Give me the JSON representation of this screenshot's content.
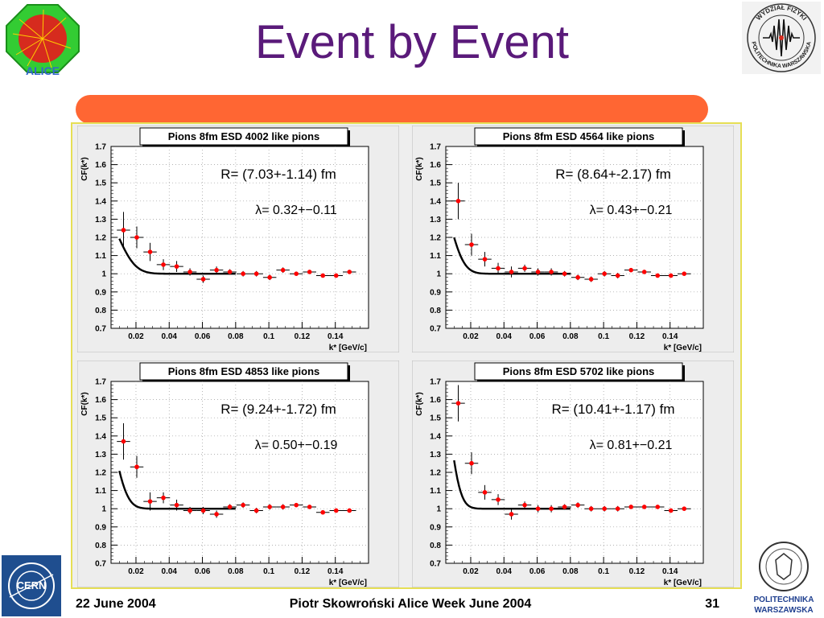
{
  "slide": {
    "title": "Event by Event",
    "footer": {
      "date": "22 June 2004",
      "author": "Piotr Skowroński  Alice Week June  2004",
      "page": "31"
    },
    "logos": {
      "top_left": "alice-logo",
      "top_right": "wydzial-fizyki-logo",
      "bottom_left": "cern-logo",
      "bottom_right": "politechnika-warszawska-logo",
      "top_left_text": "ALICE",
      "top_right_text_top": "WYDZIAŁ FIZYKI",
      "top_right_text_bottom": "POLITECHNIKA WARSZAWSKA",
      "bottom_left_text": "CERN",
      "bottom_right_text_1": "POLITECHNIKA",
      "bottom_right_text_2": "WARSZAWSKA"
    },
    "colors": {
      "title": "#5a1a7a",
      "bar": "#ff6633",
      "frame_border": "#e6df55",
      "points": "#ff0000",
      "fit": "#000000"
    }
  },
  "chart_data": [
    {
      "type": "scatter",
      "title": "Pions 8fm ESD  4002 like pions",
      "xlabel": "k* [GeV/c]",
      "ylabel": "CF(k*)",
      "xlim": [
        0.005,
        0.16
      ],
      "ylim": [
        0.7,
        1.7
      ],
      "x_ticks": [
        "0.02",
        "0.04",
        "0.06",
        "0.08",
        "0.1",
        "0.12",
        "0.14"
      ],
      "y_ticks": [
        "0.7",
        "0.8",
        "0.9",
        "1",
        "1.1",
        "1.2",
        "1.3",
        "1.4",
        "1.5",
        "1.6",
        "1.7"
      ],
      "grid": true,
      "annotation_R": "R= (7.03+-1.14) fm",
      "annotation_lambda": "λ= 0.32+−0.11",
      "fit": {
        "R": 7.03,
        "lambda": 0.32,
        "x_end": 0.08
      },
      "x": [
        0.0125,
        0.0205,
        0.0285,
        0.0365,
        0.0445,
        0.0525,
        0.0605,
        0.0685,
        0.0765,
        0.0845,
        0.0925,
        0.1005,
        0.1085,
        0.1165,
        0.1245,
        0.1325,
        0.1405,
        0.1485
      ],
      "y": [
        1.24,
        1.2,
        1.12,
        1.05,
        1.04,
        1.01,
        0.97,
        1.02,
        1.01,
        1.0,
        1.0,
        0.98,
        1.02,
        1.0,
        1.01,
        0.99,
        0.99,
        1.01
      ],
      "yerr": [
        0.1,
        0.06,
        0.05,
        0.03,
        0.03,
        0.02,
        0.02,
        0.02,
        0.015,
        0.015,
        0.015,
        0.015,
        0.015,
        0.01,
        0.01,
        0.01,
        0.01,
        0.01
      ]
    },
    {
      "type": "scatter",
      "title": "Pions 8fm ESD 4564 like pions",
      "xlabel": "k* [GeV/c]",
      "ylabel": "CF(k*)",
      "xlim": [
        0.005,
        0.16
      ],
      "ylim": [
        0.7,
        1.7
      ],
      "x_ticks": [
        "0.02",
        "0.04",
        "0.06",
        "0.08",
        "0.1",
        "0.12",
        "0.14"
      ],
      "y_ticks": [
        "0.7",
        "0.8",
        "0.9",
        "1",
        "1.1",
        "1.2",
        "1.3",
        "1.4",
        "1.5",
        "1.6",
        "1.7"
      ],
      "grid": true,
      "annotation_R": "R= (8.64+-2.17) fm",
      "annotation_lambda": "λ= 0.43+−0.21",
      "fit": {
        "R": 8.64,
        "lambda": 0.43,
        "x_end": 0.08
      },
      "x": [
        0.0125,
        0.0205,
        0.0285,
        0.0365,
        0.0445,
        0.0525,
        0.0605,
        0.0685,
        0.0765,
        0.0845,
        0.0925,
        0.1005,
        0.1085,
        0.1165,
        0.1245,
        0.1325,
        0.1405,
        0.1485
      ],
      "y": [
        1.4,
        1.16,
        1.08,
        1.03,
        1.01,
        1.03,
        1.01,
        1.01,
        1.0,
        0.98,
        0.97,
        1.0,
        0.99,
        1.02,
        1.01,
        0.99,
        0.99,
        1.0
      ],
      "yerr": [
        0.1,
        0.06,
        0.04,
        0.03,
        0.03,
        0.02,
        0.02,
        0.02,
        0.015,
        0.015,
        0.015,
        0.015,
        0.015,
        0.01,
        0.01,
        0.01,
        0.01,
        0.01
      ]
    },
    {
      "type": "scatter",
      "title": "Pions 8fm ESD 4853 like pions",
      "xlabel": "k* [GeV/c]",
      "ylabel": "CF(k*)",
      "xlim": [
        0.005,
        0.16
      ],
      "ylim": [
        0.7,
        1.7
      ],
      "x_ticks": [
        "0.02",
        "0.04",
        "0.06",
        "0.08",
        "0.1",
        "0.12",
        "0.14"
      ],
      "y_ticks": [
        "0.7",
        "0.8",
        "0.9",
        "1",
        "1.1",
        "1.2",
        "1.3",
        "1.4",
        "1.5",
        "1.6",
        "1.7"
      ],
      "grid": true,
      "annotation_R": "R= (9.24+-1.72) fm",
      "annotation_lambda": "λ= 0.50+−0.19",
      "fit": {
        "R": 9.24,
        "lambda": 0.5,
        "x_end": 0.08
      },
      "x": [
        0.0125,
        0.0205,
        0.0285,
        0.0365,
        0.0445,
        0.0525,
        0.0605,
        0.0685,
        0.0765,
        0.0845,
        0.0925,
        0.1005,
        0.1085,
        0.1165,
        0.1245,
        0.1325,
        0.1405,
        0.1485
      ],
      "y": [
        1.37,
        1.23,
        1.04,
        1.06,
        1.02,
        0.99,
        0.99,
        0.97,
        1.01,
        1.02,
        0.99,
        1.01,
        1.01,
        1.02,
        1.01,
        0.98,
        0.99,
        0.99
      ],
      "yerr": [
        0.1,
        0.06,
        0.05,
        0.03,
        0.03,
        0.02,
        0.02,
        0.02,
        0.015,
        0.015,
        0.015,
        0.015,
        0.015,
        0.01,
        0.01,
        0.01,
        0.01,
        0.01
      ]
    },
    {
      "type": "scatter",
      "title": "Pions 8fm ESD 5702 like pions",
      "xlabel": "k* [GeV/c]",
      "ylabel": "CF(k*)",
      "xlim": [
        0.005,
        0.16
      ],
      "ylim": [
        0.7,
        1.7
      ],
      "x_ticks": [
        "0.02",
        "0.04",
        "0.06",
        "0.08",
        "0.1",
        "0.12",
        "0.14"
      ],
      "y_ticks": [
        "0.7",
        "0.8",
        "0.9",
        "1",
        "1.1",
        "1.2",
        "1.3",
        "1.4",
        "1.5",
        "1.6",
        "1.7"
      ],
      "grid": true,
      "annotation_R": "R= (10.41+-1.17) fm",
      "annotation_lambda": "λ= 0.81+−0.21",
      "fit": {
        "R": 10.41,
        "lambda": 0.81,
        "x_end": 0.08
      },
      "x": [
        0.0125,
        0.0205,
        0.0285,
        0.0365,
        0.0445,
        0.0525,
        0.0605,
        0.0685,
        0.0765,
        0.0845,
        0.0925,
        0.1005,
        0.1085,
        0.1165,
        0.1245,
        0.1325,
        0.1405,
        0.1485
      ],
      "y": [
        1.58,
        1.25,
        1.09,
        1.05,
        0.97,
        1.02,
        1.0,
        1.0,
        1.01,
        1.02,
        1.0,
        1.0,
        1.0,
        1.01,
        1.01,
        1.01,
        0.99,
        1.0
      ],
      "yerr": [
        0.1,
        0.06,
        0.04,
        0.03,
        0.03,
        0.02,
        0.02,
        0.02,
        0.015,
        0.015,
        0.015,
        0.015,
        0.015,
        0.01,
        0.01,
        0.01,
        0.01,
        0.01
      ]
    }
  ]
}
